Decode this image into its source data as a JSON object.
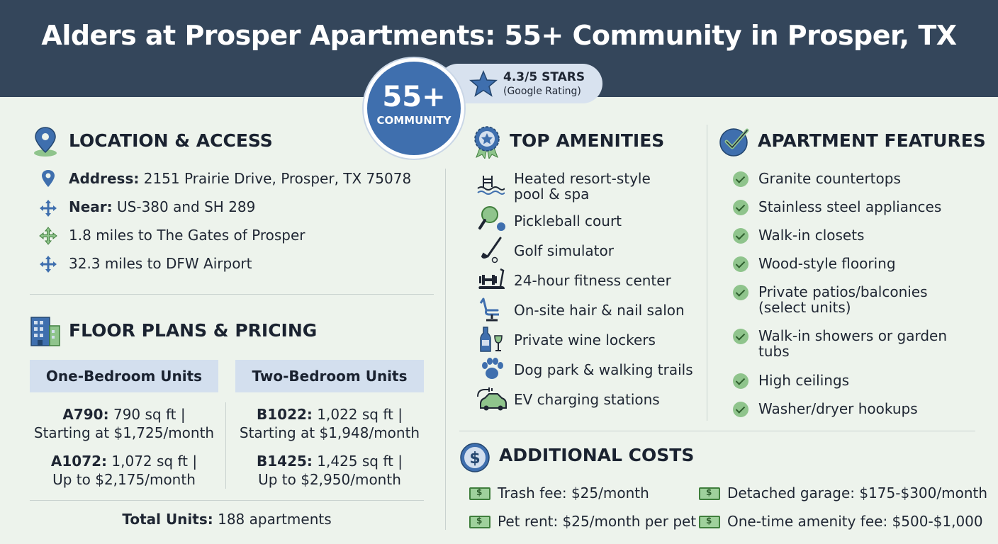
{
  "title": "Alders at Prosper Apartments: 55+ Community in Prosper, TX",
  "badge": {
    "number": "55+",
    "label": "COMMUNITY"
  },
  "rating": {
    "stars": "4.3/5 STARS",
    "source": "(Google Rating)"
  },
  "location": {
    "heading": "LOCATION & ACCESS",
    "items": [
      {
        "label": "Address:",
        "value": " 2151 Prairie Drive, Prosper, TX 75078",
        "icon": "map-pin-icon"
      },
      {
        "label": "Near:",
        "value": " US-380 and SH 289",
        "icon": "crossroads-icon"
      },
      {
        "label": "",
        "value": "1.8 miles to The Gates of Prosper",
        "icon": "directions-icon"
      },
      {
        "label": "",
        "value": "32.3 miles to DFW Airport",
        "icon": "directions-icon"
      }
    ]
  },
  "floor_plans": {
    "heading": "FLOOR PLANS & PRICING",
    "columns": [
      {
        "header": "One-Bedroom Units",
        "plans": [
          {
            "name": "A790:",
            "line1": " 790 sq ft |",
            "line2": "Starting at $1,725/month"
          },
          {
            "name": "A1072:",
            "line1": " 1,072 sq ft |",
            "line2": "Up to $2,175/month"
          }
        ]
      },
      {
        "header": "Two-Bedroom Units",
        "plans": [
          {
            "name": "B1022:",
            "line1": " 1,022 sq ft |",
            "line2": "Starting at $1,948/month"
          },
          {
            "name": "B1425:",
            "line1": " 1,425 sq ft |",
            "line2": "Up to $2,950/month"
          }
        ]
      }
    ],
    "total_label": "Total Units:",
    "total_value": " 188 apartments"
  },
  "amenities": {
    "heading": "TOP AMENITIES",
    "items": [
      {
        "line1": "Heated resort-style",
        "line2": "pool & spa",
        "icon": "pool-icon"
      },
      {
        "line1": "Pickleball court",
        "line2": "",
        "icon": "pickleball-icon"
      },
      {
        "line1": "Golf simulator",
        "line2": "",
        "icon": "golf-club-icon"
      },
      {
        "line1": "24-hour fitness center",
        "line2": "",
        "icon": "treadmill-icon"
      },
      {
        "line1": "On-site hair & nail salon",
        "line2": "",
        "icon": "salon-chair-icon"
      },
      {
        "line1": "Private wine lockers",
        "line2": "",
        "icon": "wine-icon"
      },
      {
        "line1": "Dog park & walking trails",
        "line2": "",
        "icon": "paw-icon"
      },
      {
        "line1": "EV charging stations",
        "line2": "",
        "icon": "ev-car-icon"
      }
    ]
  },
  "features": {
    "heading": "APARTMENT FEATURES",
    "items": [
      {
        "line1": "Granite countertops",
        "line2": ""
      },
      {
        "line1": "Stainless steel appliances",
        "line2": ""
      },
      {
        "line1": "Walk-in closets",
        "line2": ""
      },
      {
        "line1": "Wood-style flooring",
        "line2": ""
      },
      {
        "line1": "Private patios/balconies",
        "line2": "(select units)"
      },
      {
        "line1": "Walk-in showers or garden",
        "line2": "tubs"
      },
      {
        "line1": "High ceilings",
        "line2": ""
      },
      {
        "line1": "Washer/dryer hookups",
        "line2": ""
      }
    ]
  },
  "costs": {
    "heading": "ADDITIONAL COSTS",
    "items": [
      "Trash fee: $25/month",
      "Detached garage: $175-$300/month",
      "Pet rent: $25/month per pet",
      "One-time amenity fee: $500-$1,000"
    ]
  },
  "colors": {
    "header_bg": "#34465b",
    "accent_blue": "#3f6fae",
    "check_green": "#8fc48c",
    "page_bg": "#edf3ec"
  }
}
